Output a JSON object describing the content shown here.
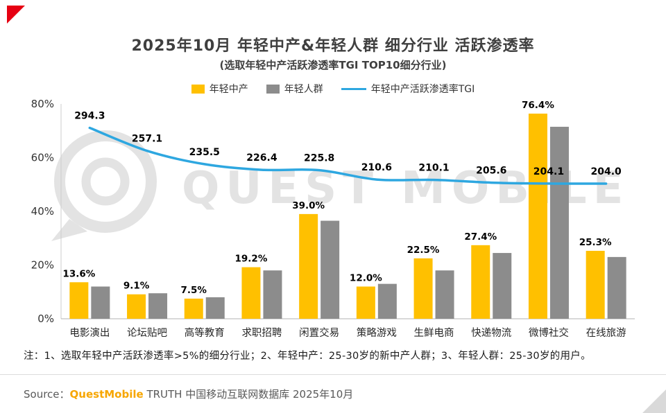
{
  "page": {
    "title": "2025年10月 年轻中产&年轻人群 细分行业 活跃渗透率",
    "subtitle": "(选取年轻中产活跃渗透率TGI TOP10细分行业)",
    "note": "注：1、选取年轻中产活跃渗透率>5%的细分行业；2、年轻中产：25-30岁的新中产人群；3、年轻人群：25-30岁的用户。",
    "source": {
      "prefix": "Source：",
      "brand": "QuestMobile",
      "suffix": " TRUTH 中国移动互联网数据库 2025年10月"
    },
    "watermark": "QUEST MOBILE"
  },
  "colors": {
    "corner_red": "#E60012",
    "bar_primary": "#FFC000",
    "bar_secondary": "#8C8C8C",
    "tgi_line": "#2EA7E0",
    "brand_orange": "#F7A600",
    "watermark_gray": "#E3E3E3",
    "corner_gray": "#D9D9D9"
  },
  "chart_data": {
    "type": "bar",
    "subtype": "grouped-bars-with-line-overlay",
    "title": "2025年10月 年轻中产&年轻人群 细分行业 活跃渗透率",
    "categories": [
      "电影演出",
      "论坛贴吧",
      "高等教育",
      "求职招聘",
      "闲置交易",
      "策略游戏",
      "生鲜电商",
      "快递物流",
      "微博社交",
      "在线旅游"
    ],
    "series": [
      {
        "name": "年轻中产",
        "type": "bar",
        "color": "#FFC000",
        "unit": "%",
        "values": [
          13.6,
          9.1,
          7.5,
          19.2,
          39.0,
          12.0,
          22.5,
          27.4,
          76.4,
          25.3
        ],
        "value_labels": [
          "13.6%",
          "9.1%",
          "7.5%",
          "19.2%",
          "39.0%",
          "12.0%",
          "22.5%",
          "27.4%",
          "76.4%",
          "25.3%"
        ]
      },
      {
        "name": "年轻人群",
        "type": "bar",
        "color": "#8C8C8C",
        "unit": "%",
        "estimated": true,
        "values": [
          12.0,
          9.5,
          8.0,
          18.0,
          36.5,
          13.0,
          18.0,
          24.5,
          71.5,
          23.0
        ]
      },
      {
        "name": "年轻中产活跃渗透率TGI",
        "type": "line",
        "color": "#2EA7E0",
        "values": [
          294.3,
          257.1,
          235.5,
          226.4,
          225.8,
          210.6,
          210.1,
          205.6,
          204.1,
          204.0
        ],
        "value_labels": [
          "294.3",
          "257.1",
          "235.5",
          "226.4",
          "225.8",
          "210.6",
          "210.1",
          "205.6",
          "204.1",
          "204.0"
        ]
      }
    ],
    "y_axis": {
      "min": 0,
      "max": 80,
      "tick_values": [
        0,
        20,
        40,
        60,
        80
      ],
      "tick_labels": [
        "0%",
        "20%",
        "40%",
        "60%",
        "80%"
      ]
    },
    "grid": false,
    "legend_position": "top"
  }
}
